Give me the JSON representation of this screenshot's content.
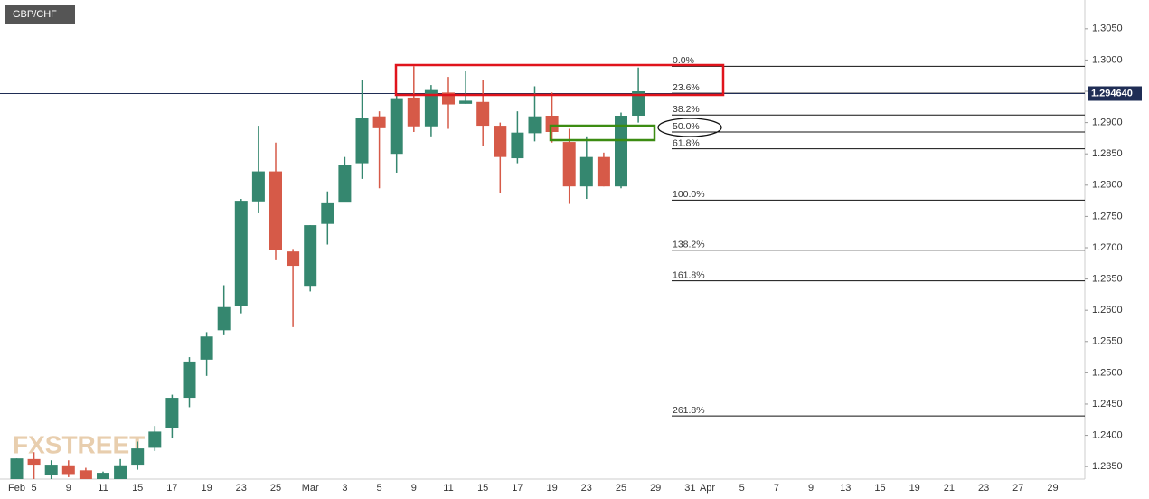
{
  "chart_data": {
    "type": "candlestick",
    "title": "GBP/CHF",
    "logo": "FXSTREET",
    "categories": [
      "Feb",
      "5",
      null,
      "9",
      null,
      "11",
      null,
      "15",
      null,
      "17",
      null,
      "19",
      null,
      "23",
      null,
      "25",
      null,
      "Mar",
      null,
      "3",
      null,
      "5",
      null,
      "9",
      null,
      "11",
      null,
      "15",
      null,
      "17",
      null,
      "19",
      null,
      "23",
      null,
      "25",
      null,
      "29",
      null,
      "31",
      "Apr",
      null,
      "5",
      null,
      "7",
      null,
      "9",
      null,
      "13",
      null,
      "15",
      null,
      "19",
      null,
      "21",
      null,
      "23",
      null,
      "27",
      null,
      "29"
    ],
    "open": [
      1.233,
      1.2362,
      1.2337,
      1.2352,
      1.2344,
      1.233,
      1.233,
      1.2353,
      1.238,
      1.2411,
      1.246,
      1.2521,
      1.2568,
      1.2607,
      1.2774,
      1.2822,
      1.2694,
      1.2639,
      1.2738,
      1.2772,
      1.2835,
      1.291,
      1.285,
      1.294,
      1.2894,
      1.2948,
      1.293,
      1.2933,
      1.2895,
      1.2843,
      1.2883,
      1.2911,
      1.2869,
      1.2798,
      1.2845,
      1.2798,
      1.2911,
      null,
      null,
      null,
      null,
      null,
      null,
      null,
      null,
      null,
      null,
      null,
      null,
      null,
      null,
      null,
      null,
      null,
      null,
      null,
      null,
      null,
      null,
      null,
      null
    ],
    "high": [
      1.2363,
      1.2373,
      1.236,
      1.236,
      1.2348,
      1.2342,
      1.2362,
      1.239,
      1.2415,
      1.2465,
      1.2525,
      1.2565,
      1.264,
      1.2778,
      1.2895,
      1.2868,
      1.2698,
      1.2736,
      1.279,
      1.2845,
      1.2968,
      1.2918,
      1.2945,
      1.299,
      1.296,
      1.2973,
      1.2983,
      1.2968,
      1.29,
      1.2918,
      1.2958,
      1.2948,
      1.289,
      1.2878,
      1.2852,
      1.2916,
      1.2988,
      null,
      null,
      null,
      null,
      null,
      null,
      null,
      null,
      null,
      null,
      null,
      null,
      null,
      null,
      null,
      null,
      null,
      null,
      null,
      null,
      null,
      null,
      null,
      null
    ],
    "low": [
      1.233,
      1.233,
      1.233,
      1.2333,
      1.233,
      1.233,
      1.233,
      1.2345,
      1.2375,
      1.2395,
      1.2445,
      1.2495,
      1.256,
      1.2595,
      1.2755,
      1.268,
      1.2573,
      1.263,
      1.2705,
      1.2775,
      1.281,
      1.2795,
      1.282,
      1.2885,
      1.2878,
      1.289,
      1.293,
      1.2862,
      1.2788,
      1.2835,
      1.287,
      1.2868,
      1.277,
      1.2778,
      1.2798,
      1.2795,
      1.29,
      null,
      null,
      null,
      null,
      null,
      null,
      null,
      null,
      null,
      null,
      null,
      null,
      null,
      null,
      null,
      null,
      null,
      null,
      null,
      null,
      null,
      null,
      null,
      null
    ],
    "close": [
      1.2363,
      1.2353,
      1.2353,
      1.2338,
      1.233,
      1.234,
      1.2352,
      1.2379,
      1.2406,
      1.246,
      1.2518,
      1.2558,
      1.2605,
      1.2775,
      1.2822,
      1.2697,
      1.2671,
      1.2736,
      1.2771,
      1.2832,
      1.2908,
      1.2891,
      1.2939,
      1.2894,
      1.2952,
      1.2929,
      1.2935,
      1.2895,
      1.2845,
      1.2884,
      1.291,
      1.2885,
      1.2798,
      1.2845,
      1.2798,
      1.2911,
      1.295,
      null,
      null,
      null,
      null,
      null,
      null,
      null,
      null,
      null,
      null,
      null,
      null,
      null,
      null,
      null,
      null,
      null,
      null,
      null,
      null,
      null,
      null,
      null,
      null
    ],
    "up_color": "#35876f",
    "down_color": "#d65a48",
    "ylim": [
      1.233,
      1.3096
    ],
    "yticks": [
      {
        "value": 1.235,
        "label": "1.2350"
      },
      {
        "value": 1.24,
        "label": "1.2400"
      },
      {
        "value": 1.245,
        "label": "1.2450"
      },
      {
        "value": 1.25,
        "label": "1.2500"
      },
      {
        "value": 1.255,
        "label": "1.2550"
      },
      {
        "value": 1.26,
        "label": "1.2600"
      },
      {
        "value": 1.265,
        "label": "1.2650"
      },
      {
        "value": 1.27,
        "label": "1.2700"
      },
      {
        "value": 1.275,
        "label": "1.2750"
      },
      {
        "value": 1.28,
        "label": "1.2800"
      },
      {
        "value": 1.285,
        "label": "1.2850"
      },
      {
        "value": 1.29,
        "label": "1.2900"
      },
      {
        "value": 1.295,
        "label": "1.2950"
      },
      {
        "value": 1.3,
        "label": "1.3000"
      },
      {
        "value": 1.305,
        "label": "1.3050"
      }
    ],
    "current_price": {
      "value": 1.29464,
      "label": "1.294640"
    },
    "fib_levels": [
      {
        "label": "0.0%",
        "value": 1.299
      },
      {
        "label": "23.6%",
        "value": 1.2947
      },
      {
        "label": "38.2%",
        "value": 1.2912
      },
      {
        "label": "50.0%",
        "value": 1.2885
      },
      {
        "label": "61.8%",
        "value": 1.2858
      },
      {
        "label": "100.0%",
        "value": 1.2776
      },
      {
        "label": "138.2%",
        "value": 1.2696
      },
      {
        "label": "161.8%",
        "value": 1.2647
      },
      {
        "label": "261.8%",
        "value": 1.2431
      }
    ]
  }
}
